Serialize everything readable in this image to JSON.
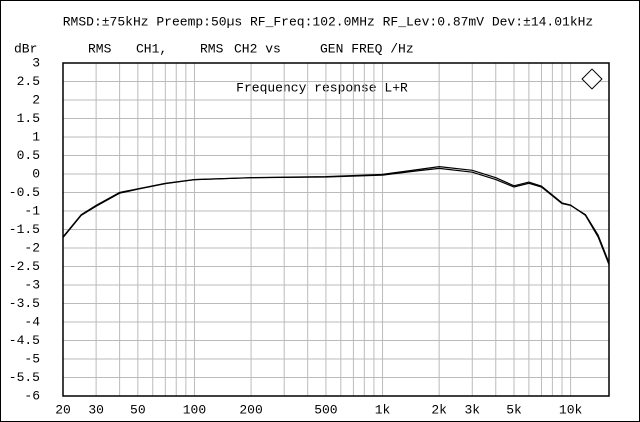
{
  "chart_data": {
    "type": "line",
    "header": "RMSD:±75kHz Preemp:50µs RF_Freq:102.0MHz RF_Lev:0.87mV Dev:±14.01kHz",
    "ylabel": "dBr",
    "trace_labels": [
      "RMS",
      "CH1,",
      "RMS",
      "CH2 vs",
      "GEN FREQ /Hz"
    ],
    "title": "Frequency response L+R",
    "xscale": "log",
    "grid": true,
    "xlim": [
      20,
      16000
    ],
    "ylim": [
      -6,
      3
    ],
    "xticks": [
      20,
      30,
      50,
      100,
      200,
      500,
      {
        "value": 1000,
        "label": "1k"
      },
      {
        "value": 2000,
        "label": "2k"
      },
      {
        "value": 3000,
        "label": "3k"
      },
      {
        "value": 5000,
        "label": "5k"
      },
      {
        "value": 10000,
        "label": "10k"
      }
    ],
    "xminor_ticks": [
      40,
      60,
      70,
      80,
      90,
      300,
      400,
      600,
      700,
      800,
      900,
      4000,
      6000,
      7000,
      8000,
      9000
    ],
    "yticks": [
      3,
      2.5,
      2,
      1.5,
      1,
      0.5,
      0,
      -0.5,
      -1,
      -1.5,
      -2,
      -2.5,
      -3,
      -3.5,
      -4,
      -4.5,
      -5,
      -5.5,
      -6
    ],
    "x": [
      20,
      25,
      30,
      40,
      50,
      70,
      100,
      200,
      500,
      1000,
      1500,
      2000,
      3000,
      4000,
      5000,
      6000,
      7000,
      9000,
      10000,
      12000,
      14000,
      16000
    ],
    "series": [
      {
        "name": "CH1",
        "color": "#000000",
        "values": [
          -1.7,
          -1.1,
          -0.85,
          -0.5,
          -0.4,
          -0.25,
          -0.15,
          -0.1,
          -0.08,
          -0.03,
          0.08,
          0.15,
          0.05,
          -0.15,
          -0.35,
          -0.25,
          -0.35,
          -0.8,
          -0.85,
          -1.1,
          -1.65,
          -2.4
        ]
      },
      {
        "name": "CH2",
        "color": "#000000",
        "values": [
          -1.72,
          -1.12,
          -0.87,
          -0.52,
          -0.41,
          -0.26,
          -0.15,
          -0.1,
          -0.07,
          -0.01,
          0.11,
          0.2,
          0.1,
          -0.1,
          -0.32,
          -0.22,
          -0.33,
          -0.78,
          -0.84,
          -1.12,
          -1.7,
          -2.45
        ]
      }
    ]
  }
}
